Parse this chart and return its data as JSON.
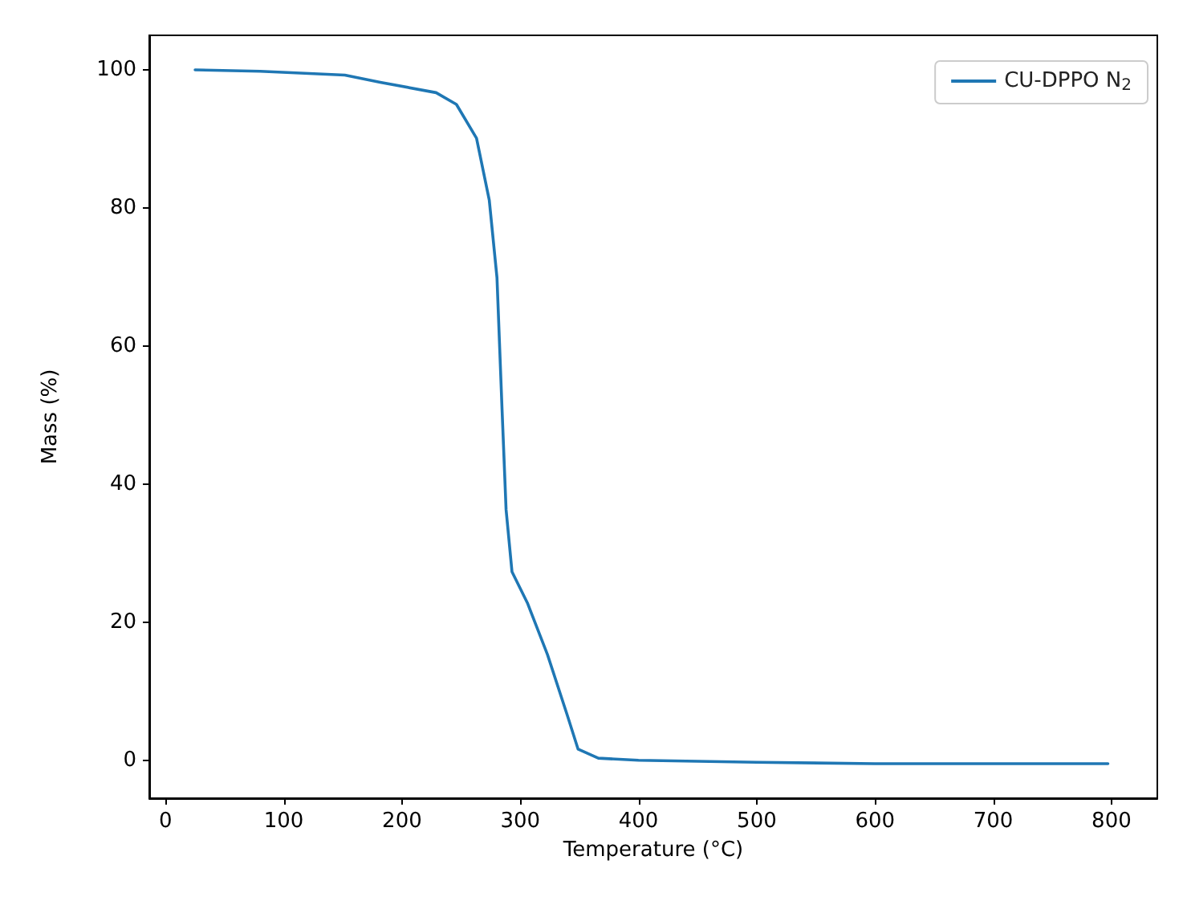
{
  "chart_data": {
    "type": "line",
    "xlabel": "Temperature (°C)",
    "ylabel": "Mass (%)",
    "x": [
      25,
      80,
      151.6,
      181.6,
      228.8,
      246,
      263,
      273.8,
      280.3,
      284.5,
      288,
      293,
      306,
      323,
      340,
      348.9,
      366,
      400,
      500,
      600,
      700,
      797
    ],
    "series": [
      {
        "name": "CU-DPPO N$_{2}$",
        "color": "#1f77b4",
        "values": [
          100,
          99.8,
          99.25,
          98.2,
          96.7,
          95,
          90.1,
          81.1,
          69.9,
          51.2,
          36.3,
          27.3,
          22.8,
          15.3,
          6.4,
          1.6,
          0.3,
          0,
          -0.3,
          -0.5,
          -0.5,
          -0.5
        ]
      }
    ],
    "xlim": [
      -13.75,
      838.75
    ],
    "ylim": [
      -5.5,
      105
    ],
    "xticks": [
      0,
      100,
      200,
      300,
      400,
      500,
      600,
      700,
      800
    ],
    "yticks": [
      0,
      20,
      40,
      60,
      80,
      100
    ],
    "grid": false,
    "legend": "top right",
    "marker": "none",
    "line_style": "solid"
  }
}
